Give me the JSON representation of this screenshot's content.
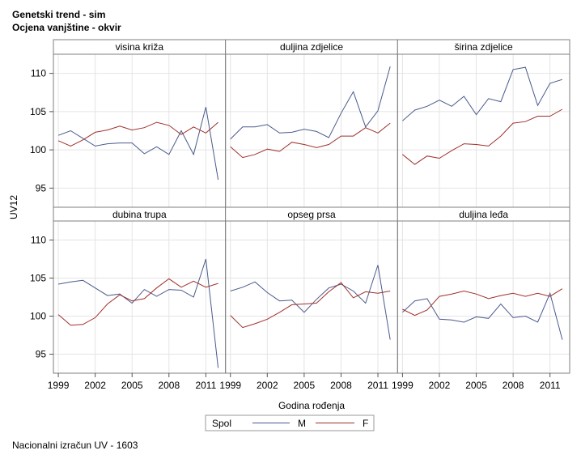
{
  "titles": {
    "line1": "Genetski trend - sim",
    "line2": "Ocjena vanjštine - okvir"
  },
  "footnote": "Nacionalni izračun UV - 1603",
  "chart_data": {
    "type": "line",
    "ylabel": "UV12",
    "xlabel": "Godina rođenja",
    "x_ticks": [
      1999,
      2002,
      2005,
      2008,
      2011
    ],
    "y_ticks": [
      95,
      100,
      105,
      110
    ],
    "xlim": [
      1998.6,
      2012.6
    ],
    "ylim": [
      92.5,
      112.5
    ],
    "grid": true,
    "legend": {
      "title": "Spol",
      "placement": "bottom-center",
      "entries": [
        {
          "name": "M",
          "color": "#4a5a8c"
        },
        {
          "name": "F",
          "color": "#a0302a"
        }
      ]
    },
    "x": [
      1999,
      2000,
      2001,
      2002,
      2003,
      2004,
      2005,
      2006,
      2007,
      2008,
      2009,
      2010,
      2011,
      2012
    ],
    "panels": [
      {
        "title": "visina križa",
        "series": [
          {
            "name": "M",
            "values": [
              101.9,
              102.5,
              101.5,
              100.5,
              100.8,
              100.9,
              100.9,
              99.5,
              100.4,
              99.4,
              102.5,
              99.4,
              105.6,
              96.1
            ]
          },
          {
            "name": "F",
            "values": [
              101.2,
              100.5,
              101.3,
              102.3,
              102.6,
              103.1,
              102.6,
              102.9,
              103.6,
              103.2,
              102.0,
              103.0,
              102.2,
              103.6
            ]
          }
        ]
      },
      {
        "title": "duljina zdjelice",
        "series": [
          {
            "name": "M",
            "values": [
              101.4,
              103.0,
              103.0,
              103.3,
              102.2,
              102.3,
              102.7,
              102.4,
              101.6,
              104.8,
              107.6,
              103.0,
              105.1,
              110.9
            ]
          },
          {
            "name": "F",
            "values": [
              100.4,
              99.0,
              99.4,
              100.1,
              99.8,
              101.0,
              100.7,
              100.3,
              100.7,
              101.8,
              101.8,
              102.9,
              102.2,
              103.5
            ]
          }
        ]
      },
      {
        "title": "širina zdjelice",
        "series": [
          {
            "name": "M",
            "values": [
              103.8,
              105.2,
              105.7,
              106.5,
              105.7,
              107.0,
              104.6,
              106.7,
              106.3,
              110.5,
              110.8,
              105.8,
              108.7,
              109.2
            ]
          },
          {
            "name": "F",
            "values": [
              99.4,
              98.1,
              99.2,
              98.9,
              99.9,
              100.8,
              100.7,
              100.5,
              101.8,
              103.5,
              103.7,
              104.4,
              104.4,
              105.3
            ]
          }
        ]
      },
      {
        "title": "dubina trupa",
        "series": [
          {
            "name": "M",
            "values": [
              104.2,
              104.5,
              104.7,
              103.7,
              102.7,
              102.9,
              101.7,
              103.5,
              102.6,
              103.5,
              103.4,
              102.5,
              107.5,
              93.2
            ]
          },
          {
            "name": "F",
            "values": [
              100.2,
              98.8,
              98.9,
              99.8,
              101.6,
              102.8,
              102.0,
              102.3,
              103.7,
              104.9,
              103.8,
              104.6,
              103.8,
              104.3
            ]
          }
        ]
      },
      {
        "title": "opseg prsa",
        "series": [
          {
            "name": "M",
            "values": [
              103.3,
              103.8,
              104.5,
              103.1,
              102.0,
              102.1,
              100.5,
              102.2,
              103.7,
              104.2,
              103.3,
              101.7,
              106.7,
              96.9
            ]
          },
          {
            "name": "F",
            "values": [
              100.1,
              98.5,
              99.0,
              99.6,
              100.5,
              101.5,
              101.6,
              101.7,
              103.2,
              104.4,
              102.4,
              103.2,
              103.0,
              103.3
            ]
          }
        ]
      },
      {
        "title": "duljina leđa",
        "series": [
          {
            "name": "M",
            "values": [
              100.5,
              102.0,
              102.3,
              99.6,
              99.5,
              99.2,
              99.9,
              99.7,
              101.6,
              99.8,
              100.0,
              99.2,
              103.0,
              96.9
            ]
          },
          {
            "name": "F",
            "values": [
              100.9,
              100.1,
              100.8,
              102.6,
              102.9,
              103.3,
              102.9,
              102.3,
              102.7,
              103.0,
              102.6,
              103.0,
              102.6,
              103.6
            ]
          }
        ]
      }
    ]
  }
}
